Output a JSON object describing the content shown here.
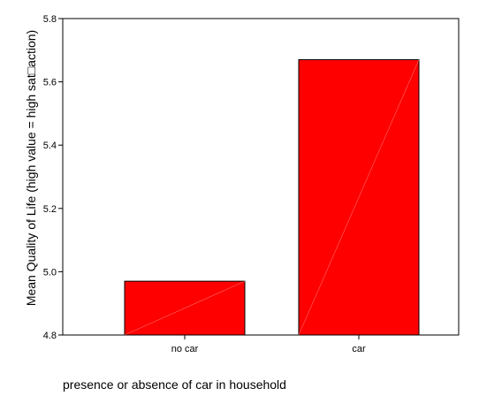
{
  "chart_data": {
    "type": "bar",
    "categories": [
      "no car",
      "car"
    ],
    "values": [
      4.97,
      5.67
    ],
    "xlabel": "presence or absence of car in household",
    "ylabel": "Mean Quality of Life (high value = high sat□action)",
    "ylim": [
      4.8,
      5.8
    ],
    "yticks": [
      "4.8",
      "5.0",
      "5.2",
      "5.4",
      "5.6",
      "5.8"
    ],
    "grid": false,
    "bar_color": "#ff0000"
  }
}
